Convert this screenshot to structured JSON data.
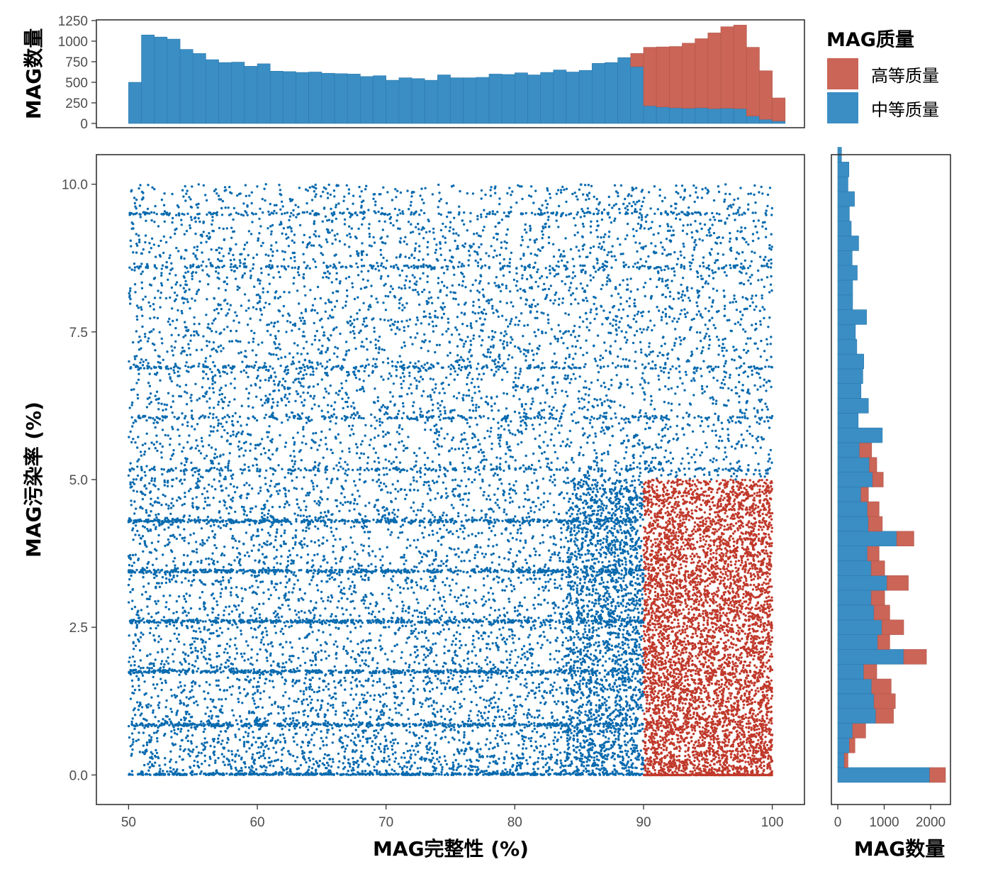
{
  "colors": {
    "high": "#C0392B",
    "medium": "#0A6BAF",
    "bar_high": "#CB6557",
    "bar_medium": "#3A8EC4"
  },
  "chart_data": [
    {
      "type": "scatter",
      "xlabel": "MAG完整性 (%)",
      "ylabel": "MAG污染率 (%)",
      "xlim": [
        47.5,
        102.5
      ],
      "ylim": [
        -0.5,
        10.5
      ],
      "x_ticks": [
        "50",
        "60",
        "70",
        "80",
        "90",
        "100"
      ],
      "y_ticks": [
        "0.0",
        "2.5",
        "5.0",
        "7.5",
        "10.0"
      ],
      "series": [
        {
          "name": "中等质量",
          "x_range": [
            50,
            100
          ],
          "y_range": [
            0,
            10
          ],
          "color": "#0A6BAF"
        },
        {
          "name": "高等质量",
          "x_range": [
            90,
            100
          ],
          "y_range": [
            0,
            5
          ],
          "color": "#C0392B"
        }
      ],
      "dense_rows_y": [
        0,
        0.85,
        1.75,
        2.6,
        3.45,
        4.3,
        5.17,
        6.05,
        6.9,
        8.6,
        9.5
      ],
      "grid": false
    },
    {
      "type": "bar",
      "orientation": "vertical",
      "xlim": [
        47.5,
        102.5
      ],
      "ylabel": "MAG数量",
      "ylim": [
        0,
        1250
      ],
      "y_ticks": [
        "0",
        "250",
        "500",
        "750",
        "1000",
        "1250"
      ],
      "bins": [
        [
          50,
          51,
          500,
          0
        ],
        [
          51,
          52,
          1075,
          0
        ],
        [
          52,
          53,
          1050,
          0
        ],
        [
          53,
          54,
          1025,
          0
        ],
        [
          54,
          55,
          900,
          0
        ],
        [
          55,
          56,
          850,
          0
        ],
        [
          56,
          57,
          775,
          0
        ],
        [
          57,
          58,
          740,
          0
        ],
        [
          58,
          59,
          745,
          0
        ],
        [
          59,
          60,
          695,
          0
        ],
        [
          60,
          61,
          725,
          0
        ],
        [
          61,
          62,
          635,
          0
        ],
        [
          62,
          63,
          630,
          0
        ],
        [
          63,
          64,
          620,
          0
        ],
        [
          64,
          65,
          625,
          0
        ],
        [
          65,
          66,
          610,
          0
        ],
        [
          66,
          67,
          605,
          0
        ],
        [
          67,
          68,
          600,
          0
        ],
        [
          68,
          69,
          570,
          0
        ],
        [
          69,
          70,
          580,
          0
        ],
        [
          70,
          71,
          525,
          0
        ],
        [
          71,
          72,
          555,
          0
        ],
        [
          72,
          73,
          545,
          0
        ],
        [
          73,
          74,
          525,
          0
        ],
        [
          74,
          75,
          590,
          0
        ],
        [
          75,
          76,
          555,
          0
        ],
        [
          76,
          77,
          555,
          0
        ],
        [
          77,
          78,
          560,
          0
        ],
        [
          78,
          79,
          600,
          0
        ],
        [
          79,
          80,
          595,
          0
        ],
        [
          80,
          81,
          615,
          0
        ],
        [
          81,
          82,
          590,
          0
        ],
        [
          82,
          83,
          620,
          0
        ],
        [
          83,
          84,
          650,
          0
        ],
        [
          84,
          85,
          625,
          0
        ],
        [
          85,
          86,
          645,
          0
        ],
        [
          86,
          87,
          730,
          0
        ],
        [
          87,
          88,
          740,
          0
        ],
        [
          88,
          89,
          800,
          0
        ],
        [
          89,
          90,
          690,
          160
        ],
        [
          90,
          91,
          215,
          710
        ],
        [
          91,
          92,
          200,
          730
        ],
        [
          92,
          93,
          190,
          745
        ],
        [
          93,
          94,
          185,
          790
        ],
        [
          94,
          95,
          190,
          840
        ],
        [
          95,
          96,
          180,
          920
        ],
        [
          96,
          97,
          185,
          990
        ],
        [
          97,
          98,
          180,
          1015
        ],
        [
          98,
          99,
          90,
          835
        ],
        [
          99,
          100,
          50,
          590
        ],
        [
          100,
          101,
          30,
          280
        ]
      ],
      "bin_format": "[x_start, x_end, 中等质量, 高等质量]"
    },
    {
      "type": "bar",
      "orientation": "horizontal",
      "xlabel": "MAG数量",
      "xlim": [
        -50,
        2450
      ],
      "x_ticks": [
        "0",
        "1000",
        "2000"
      ],
      "ylim": [
        -0.5,
        10.5
      ],
      "bins": [
        [
          -0.125,
          0.125,
          1980,
          340
        ],
        [
          0.125,
          0.375,
          140,
          80
        ],
        [
          0.375,
          0.625,
          250,
          120
        ],
        [
          0.625,
          0.875,
          320,
          280
        ],
        [
          0.875,
          1.125,
          820,
          380
        ],
        [
          1.125,
          1.375,
          780,
          460
        ],
        [
          1.375,
          1.625,
          730,
          420
        ],
        [
          1.625,
          1.875,
          560,
          280
        ],
        [
          1.875,
          2.125,
          1420,
          490
        ],
        [
          2.125,
          2.375,
          860,
          260
        ],
        [
          2.375,
          2.625,
          950,
          470
        ],
        [
          2.625,
          2.875,
          780,
          340
        ],
        [
          2.875,
          3.125,
          720,
          290
        ],
        [
          3.125,
          3.375,
          1060,
          460
        ],
        [
          3.375,
          3.625,
          720,
          290
        ],
        [
          3.625,
          3.875,
          640,
          250
        ],
        [
          3.875,
          4.125,
          1270,
          370
        ],
        [
          4.125,
          4.375,
          660,
          300
        ],
        [
          4.375,
          4.625,
          640,
          250
        ],
        [
          4.625,
          4.875,
          500,
          160
        ],
        [
          4.875,
          5.125,
          750,
          230
        ],
        [
          5.125,
          5.375,
          680,
          160
        ],
        [
          5.375,
          5.625,
          470,
          260
        ],
        [
          5.625,
          5.875,
          960,
          0
        ],
        [
          5.875,
          6.125,
          440,
          0
        ],
        [
          6.125,
          6.375,
          660,
          0
        ],
        [
          6.375,
          6.625,
          500,
          0
        ],
        [
          6.625,
          6.875,
          540,
          0
        ],
        [
          6.875,
          7.125,
          560,
          0
        ],
        [
          7.125,
          7.375,
          410,
          0
        ],
        [
          7.375,
          7.625,
          380,
          0
        ],
        [
          7.625,
          7.875,
          620,
          0
        ],
        [
          7.875,
          8.125,
          320,
          0
        ],
        [
          8.125,
          8.375,
          320,
          0
        ],
        [
          8.375,
          8.625,
          420,
          0
        ],
        [
          8.625,
          8.875,
          310,
          0
        ],
        [
          8.875,
          9.125,
          450,
          0
        ],
        [
          9.125,
          9.375,
          290,
          0
        ],
        [
          9.375,
          9.625,
          250,
          0
        ],
        [
          9.625,
          9.875,
          360,
          0
        ],
        [
          9.875,
          10.125,
          220,
          0
        ],
        [
          10.125,
          10.375,
          240,
          0
        ],
        [
          10.375,
          10.625,
          80,
          0
        ]
      ],
      "bin_format": "[y_start, y_end, 中等质量, 高等质量]"
    }
  ],
  "legend": {
    "title": "MAG质量",
    "items": [
      {
        "label": "高等质量",
        "color": "#CB6557"
      },
      {
        "label": "中等质量",
        "color": "#3A8EC4"
      }
    ]
  }
}
